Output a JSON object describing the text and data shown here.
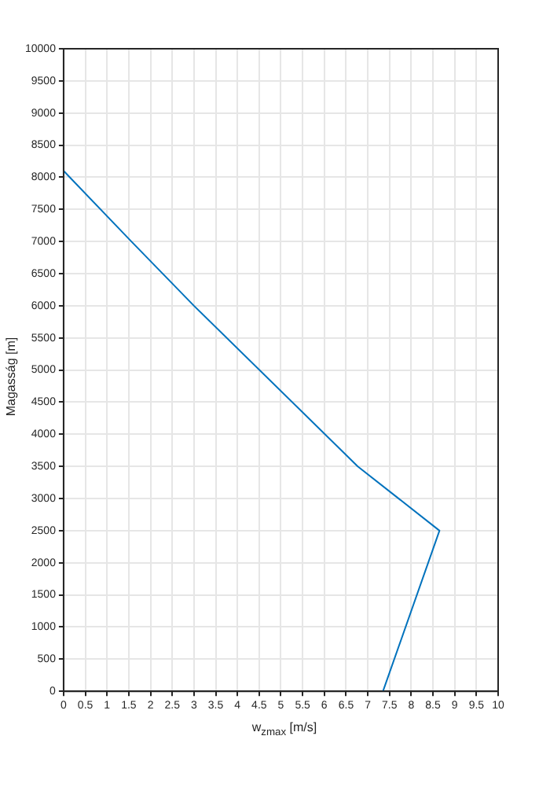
{
  "chart_data": {
    "type": "line",
    "xlabel": "w$_{zmax}$ [m/s]",
    "ylabel": "Magasság [m]",
    "series": [
      {
        "color": "#0072bd",
        "x": [
          7.35,
          8.65,
          6.77,
          3.0,
          1.56,
          0
        ],
        "values": [
          0,
          2500,
          3500,
          6000,
          7000,
          8100
        ]
      }
    ],
    "xlim": [
      0,
      10
    ],
    "xticks": [
      0,
      {
        "value": 0.5,
        "label": "0.5"
      },
      1,
      {
        "value": 1.5,
        "label": "1.5"
      },
      2,
      {
        "value": 2.5,
        "label": "2.5"
      },
      3,
      {
        "value": 3.5,
        "label": "3.5"
      },
      4,
      {
        "value": 4.5,
        "label": "4.5"
      },
      5,
      {
        "value": 5.5,
        "label": "5.5"
      },
      6,
      {
        "value": 6.5,
        "label": "6.5"
      },
      7,
      {
        "value": 7.5,
        "label": "7.5"
      },
      8,
      {
        "value": 8.5,
        "label": "8.5"
      },
      9,
      {
        "value": 9.5,
        "label": "9.5"
      },
      10
    ],
    "ylim": [
      0,
      10000
    ],
    "yticks": [
      0,
      500,
      1000,
      1500,
      2000,
      2500,
      3000,
      3500,
      4000,
      4500,
      5000,
      5500,
      6000,
      6500,
      7000,
      7500,
      8000,
      8500,
      9000,
      9500,
      10000
    ],
    "grid": true,
    "legend": false,
    "marker": "none",
    "line_style": "solid"
  }
}
